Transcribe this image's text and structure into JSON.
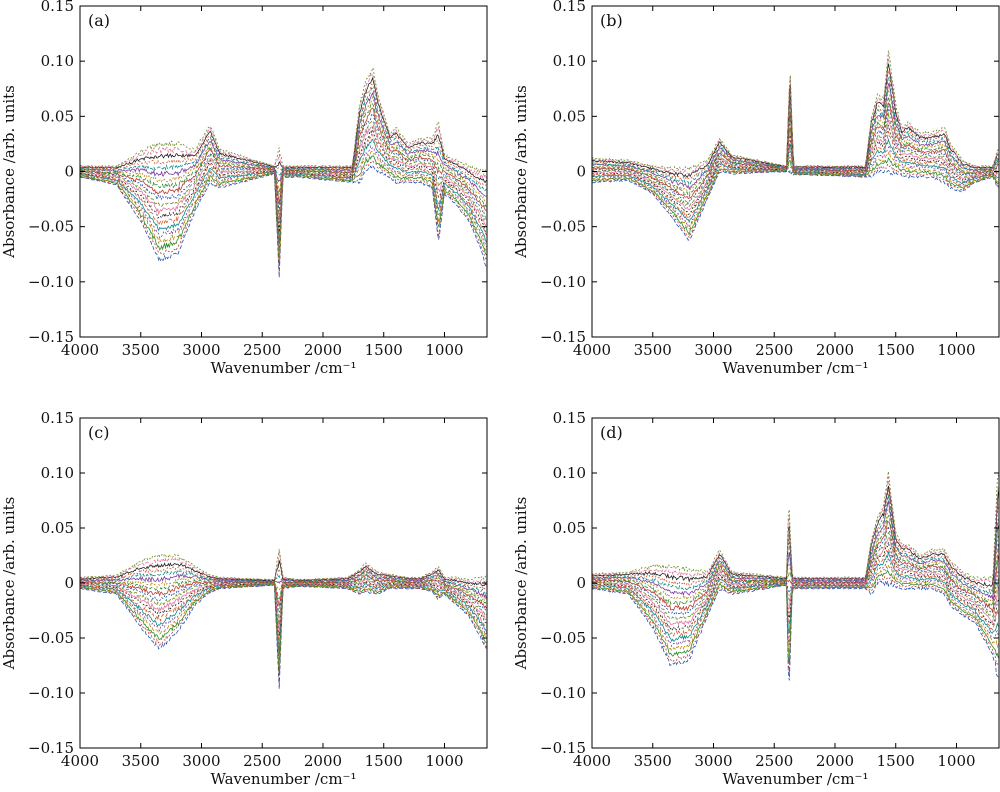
{
  "figure": {
    "panels": [
      {
        "label": "(a)",
        "xlabel": "Wavenumber /cm⁻¹",
        "ylabel": "Absorbance /arb. units"
      },
      {
        "label": "(b)",
        "xlabel": "Wavenumber /cm⁻¹",
        "ylabel": "Absorbance /arb. units"
      },
      {
        "label": "(c)",
        "xlabel": "Wavenumber /cm⁻¹",
        "ylabel": "Absorbance /arb. units"
      },
      {
        "label": "(d)",
        "xlabel": "Wavenumber /cm⁻¹",
        "ylabel": "Absorbance /arb. units"
      }
    ],
    "xtick_labels": [
      "4000",
      "3500",
      "3000",
      "2500",
      "2000",
      "1500",
      "1000"
    ],
    "ytick_labels": [
      "0.15",
      "0.10",
      "0.05",
      "0",
      "−0.05",
      "−0.10",
      "−0.15"
    ],
    "series_count_per_panel": 20,
    "series_colors": [
      "#1f4fb5",
      "#c0392b",
      "#2e8b2e",
      "#b8860b",
      "#7b3fa0",
      "#0e8a8a",
      "#d4582a",
      "#222222",
      "#e07aa0",
      "#6b8e23"
    ]
  },
  "chart_data": [
    {
      "type": "line",
      "label": "(a)",
      "xlabel": "Wavenumber /cm⁻¹",
      "ylabel": "Absorbance /arb. units",
      "xlim": [
        4000,
        650
      ],
      "ylim": [
        -0.15,
        0.15
      ],
      "x_reversed": true,
      "xticks": [
        4000,
        3500,
        3000,
        2500,
        2000,
        1500,
        1000
      ],
      "yticks": [
        0.15,
        0.1,
        0.05,
        0,
        -0.05,
        -0.1,
        -0.15
      ],
      "envelope": {
        "x": [
          4000,
          3700,
          3500,
          3350,
          3200,
          3050,
          2930,
          2850,
          2400,
          2360,
          2330,
          2200,
          1760,
          1700,
          1650,
          1590,
          1550,
          1450,
          1400,
          1300,
          1200,
          1100,
          1050,
          1000,
          900,
          800,
          700,
          660
        ],
        "upper": [
          0.005,
          0.005,
          0.018,
          0.025,
          0.025,
          0.02,
          0.042,
          0.02,
          0.005,
          0.02,
          0.005,
          0.005,
          0.005,
          0.06,
          0.08,
          0.095,
          0.07,
          0.035,
          0.04,
          0.025,
          0.03,
          0.03,
          0.045,
          0.015,
          0.01,
          0.005,
          0.0,
          0.0
        ],
        "lower": [
          -0.005,
          -0.012,
          -0.045,
          -0.08,
          -0.075,
          -0.035,
          -0.01,
          -0.015,
          -0.002,
          -0.097,
          -0.005,
          -0.005,
          -0.01,
          -0.01,
          0.0,
          0.005,
          0.0,
          -0.005,
          -0.01,
          -0.01,
          -0.01,
          -0.015,
          -0.065,
          -0.02,
          -0.03,
          -0.045,
          -0.07,
          -0.085
        ]
      }
    },
    {
      "type": "line",
      "label": "(b)",
      "xlabel": "Wavenumber /cm⁻¹",
      "ylabel": "Absorbance /arb. units",
      "xlim": [
        4000,
        650
      ],
      "ylim": [
        -0.15,
        0.15
      ],
      "x_reversed": true,
      "xticks": [
        4000,
        3500,
        3000,
        2500,
        2000,
        1500,
        1000
      ],
      "yticks": [
        0.15,
        0.1,
        0.05,
        0,
        -0.05,
        -0.1,
        -0.15
      ],
      "envelope": {
        "x": [
          4000,
          3700,
          3500,
          3350,
          3200,
          3050,
          2950,
          2850,
          2400,
          2370,
          2340,
          2200,
          1750,
          1700,
          1650,
          1600,
          1560,
          1500,
          1450,
          1400,
          1300,
          1200,
          1100,
          1050,
          950,
          850,
          700,
          660
        ],
        "upper": [
          0.012,
          0.01,
          0.005,
          0.003,
          0.003,
          0.01,
          0.03,
          0.015,
          0.005,
          0.095,
          0.005,
          0.005,
          0.005,
          0.05,
          0.07,
          0.065,
          0.11,
          0.06,
          0.04,
          0.045,
          0.035,
          0.035,
          0.04,
          0.025,
          0.01,
          0.005,
          0.005,
          0.02
        ],
        "lower": [
          -0.01,
          -0.008,
          -0.02,
          -0.04,
          -0.063,
          -0.025,
          0.0,
          -0.002,
          0.0,
          0.0,
          -0.003,
          -0.003,
          -0.005,
          -0.005,
          0.0,
          0.0,
          0.0,
          -0.002,
          -0.003,
          -0.005,
          -0.005,
          -0.005,
          -0.01,
          -0.015,
          -0.018,
          -0.01,
          -0.005,
          -0.015
        ]
      }
    },
    {
      "type": "line",
      "label": "(c)",
      "xlabel": "Wavenumber /cm⁻¹",
      "ylabel": "Absorbance /arb. units",
      "xlim": [
        4000,
        650
      ],
      "ylim": [
        -0.15,
        0.15
      ],
      "x_reversed": true,
      "xticks": [
        4000,
        3500,
        3000,
        2500,
        2000,
        1500,
        1000
      ],
      "yticks": [
        0.15,
        0.1,
        0.05,
        0,
        -0.05,
        -0.1,
        -0.15
      ],
      "envelope": {
        "x": [
          4000,
          3700,
          3500,
          3350,
          3200,
          3050,
          2950,
          2850,
          2400,
          2360,
          2330,
          2200,
          1800,
          1700,
          1650,
          1550,
          1450,
          1300,
          1200,
          1100,
          1050,
          1000,
          900,
          800,
          700,
          660
        ],
        "upper": [
          0.005,
          0.007,
          0.02,
          0.025,
          0.025,
          0.015,
          0.008,
          0.005,
          0.003,
          0.033,
          0.005,
          0.003,
          0.005,
          0.012,
          0.018,
          0.01,
          0.008,
          0.005,
          0.005,
          0.01,
          0.015,
          0.005,
          0.005,
          0.003,
          0.005,
          0.005
        ],
        "lower": [
          -0.005,
          -0.01,
          -0.04,
          -0.06,
          -0.045,
          -0.02,
          -0.01,
          -0.005,
          -0.002,
          -0.097,
          -0.005,
          -0.003,
          -0.005,
          -0.01,
          -0.008,
          -0.01,
          -0.005,
          -0.005,
          -0.005,
          -0.008,
          -0.015,
          -0.01,
          -0.02,
          -0.03,
          -0.05,
          -0.06
        ]
      }
    },
    {
      "type": "line",
      "label": "(d)",
      "xlabel": "Wavenumber /cm⁻¹",
      "ylabel": "Absorbance /arb. units",
      "xlim": [
        4000,
        650
      ],
      "ylim": [
        -0.15,
        0.15
      ],
      "x_reversed": true,
      "xticks": [
        4000,
        3500,
        3000,
        2500,
        2000,
        1500,
        1000
      ],
      "yticks": [
        0.15,
        0.1,
        0.05,
        0,
        -0.05,
        -0.1,
        -0.15
      ],
      "envelope": {
        "x": [
          4000,
          3700,
          3500,
          3350,
          3200,
          3050,
          2950,
          2850,
          2400,
          2380,
          2350,
          2200,
          1750,
          1700,
          1650,
          1600,
          1560,
          1500,
          1450,
          1400,
          1300,
          1200,
          1100,
          1050,
          950,
          850,
          700,
          660
        ],
        "upper": [
          0.008,
          0.01,
          0.015,
          0.015,
          0.012,
          0.01,
          0.03,
          0.01,
          0.005,
          0.075,
          0.005,
          0.005,
          0.005,
          0.04,
          0.06,
          0.07,
          0.1,
          0.045,
          0.035,
          0.035,
          0.025,
          0.03,
          0.03,
          0.02,
          0.01,
          0.005,
          0.005,
          0.1
        ],
        "lower": [
          -0.005,
          -0.01,
          -0.04,
          -0.075,
          -0.07,
          -0.03,
          -0.005,
          -0.01,
          -0.002,
          -0.1,
          -0.005,
          -0.005,
          -0.005,
          -0.01,
          0.0,
          0.0,
          0.0,
          -0.003,
          -0.005,
          -0.005,
          -0.005,
          -0.005,
          -0.01,
          -0.02,
          -0.03,
          -0.035,
          -0.065,
          -0.085
        ]
      }
    }
  ]
}
